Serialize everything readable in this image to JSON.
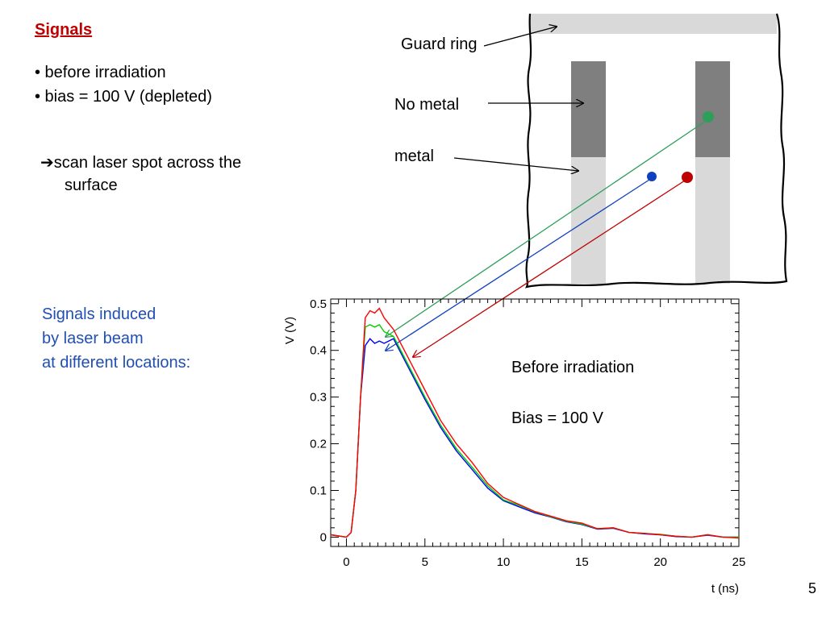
{
  "slide": {
    "title": "Signals",
    "bullets": [
      "• before irradiation",
      "• bias = 100 V (depleted)"
    ],
    "scan_line1": "scan laser spot across the",
    "scan_line2": "surface",
    "induced_lines": [
      "Signals induced",
      "by laser beam",
      "at different locations:"
    ],
    "page_number": "5"
  },
  "diagram": {
    "guard_ring_label": "Guard ring",
    "no_metal_label": "No metal",
    "metal_label": "metal",
    "colors": {
      "guard_ring": "#d9d9d9",
      "no_metal": "#7f7f7f",
      "metal": "#d9d9d9",
      "green": "#2e9e5b",
      "blue": "#1040c0",
      "red": "#c00000"
    }
  },
  "chart_data": {
    "type": "line",
    "xlabel": "t (ns)",
    "ylabel": "V (V)",
    "xlim": [
      -1,
      25
    ],
    "ylim": [
      -0.02,
      0.51
    ],
    "xticks": [
      0,
      5,
      10,
      15,
      20,
      25
    ],
    "yticks": [
      0,
      0.1,
      0.2,
      0.3,
      0.4,
      0.5
    ],
    "ytick_labels": [
      "0",
      "0.1",
      "0.2",
      "0.3",
      "0.4",
      "0.5"
    ],
    "annotations": [
      "Before irradiation",
      "Bias = 100 V"
    ],
    "series": [
      {
        "color": "#ff0000",
        "x": [
          -1,
          0,
          0.3,
          0.6,
          0.9,
          1.2,
          1.5,
          1.8,
          2.1,
          2.4,
          3,
          4,
          5,
          6,
          7,
          8,
          9,
          10,
          11,
          12,
          13,
          14,
          15,
          16,
          17,
          18,
          19,
          20,
          21,
          22,
          23,
          24,
          25
        ],
        "y": [
          0.005,
          0.0,
          0.01,
          0.1,
          0.3,
          0.47,
          0.485,
          0.48,
          0.49,
          0.47,
          0.445,
          0.38,
          0.315,
          0.25,
          0.2,
          0.16,
          0.115,
          0.085,
          0.07,
          0.055,
          0.045,
          0.035,
          0.03,
          0.018,
          0.02,
          0.01,
          0.008,
          0.005,
          0.002,
          0.0,
          0.005,
          0.0,
          -0.002
        ]
      },
      {
        "color": "#00cc00",
        "x": [
          -1,
          0,
          0.3,
          0.6,
          0.9,
          1.2,
          1.5,
          1.8,
          2.1,
          2.4,
          3,
          4,
          5,
          6,
          7,
          8,
          9,
          10,
          11,
          12,
          13,
          14,
          15,
          16,
          17,
          18,
          19,
          20,
          21,
          22,
          23,
          24,
          25
        ],
        "y": [
          0.005,
          0.0,
          0.01,
          0.1,
          0.3,
          0.45,
          0.455,
          0.45,
          0.455,
          0.44,
          0.43,
          0.365,
          0.3,
          0.24,
          0.19,
          0.15,
          0.11,
          0.08,
          0.068,
          0.054,
          0.044,
          0.034,
          0.028,
          0.018,
          0.02,
          0.01,
          0.008,
          0.006,
          0.002,
          0.0,
          0.005,
          0.0,
          0.0
        ]
      },
      {
        "color": "#0000ff",
        "x": [
          -1,
          0,
          0.3,
          0.6,
          0.9,
          1.2,
          1.5,
          1.8,
          2.1,
          2.4,
          3,
          4,
          5,
          6,
          7,
          8,
          9,
          10,
          11,
          12,
          13,
          14,
          15,
          16,
          17,
          18,
          19,
          20,
          21,
          22,
          23,
          24,
          25
        ],
        "y": [
          0.005,
          0.0,
          0.01,
          0.1,
          0.3,
          0.41,
          0.425,
          0.415,
          0.42,
          0.415,
          0.425,
          0.36,
          0.295,
          0.235,
          0.185,
          0.145,
          0.105,
          0.078,
          0.065,
          0.052,
          0.043,
          0.033,
          0.027,
          0.017,
          0.019,
          0.01,
          0.007,
          0.005,
          0.001,
          0.0,
          0.004,
          0.0,
          0.0
        ]
      }
    ]
  }
}
